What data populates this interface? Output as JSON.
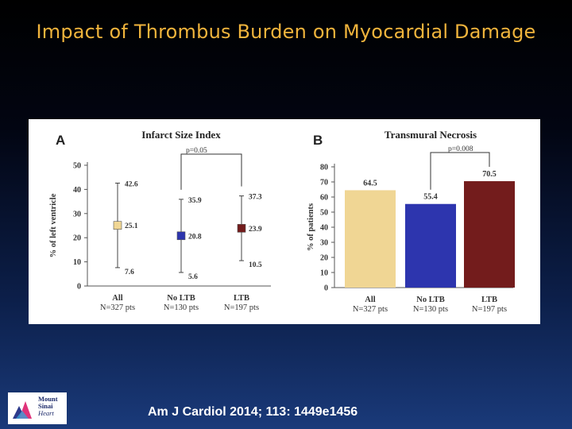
{
  "slide": {
    "title": "Impact of Thrombus Burden on Myocardial Damage",
    "citation": "Am J Cardiol 2014; 113: 1449e1456"
  },
  "logo": {
    "line1": "Mount",
    "line2": "Sinai",
    "line3": "Heart"
  },
  "colors": {
    "all": "#f0d694",
    "no_ltb": "#2d35ae",
    "ltb": "#731c1c"
  },
  "chart_data": [
    {
      "type": "scatter",
      "panel_letter": "A",
      "title": "Infarct Size Index",
      "ylabel": "% of left ventricle",
      "ylim": [
        0,
        50
      ],
      "yticks": [
        0,
        10,
        20,
        30,
        40,
        50
      ],
      "categories": [
        "All",
        "No LTB",
        "LTB"
      ],
      "category_sublabels": [
        "N=327 pts",
        "N=130 pts",
        "N=197 pts"
      ],
      "values": [
        25.1,
        20.8,
        23.9
      ],
      "upper": [
        42.6,
        35.9,
        37.3
      ],
      "lower": [
        7.6,
        5.6,
        10.5
      ],
      "colors": [
        "#f0d694",
        "#2d35ae",
        "#731c1c"
      ],
      "p_value": "p=0.05"
    },
    {
      "type": "bar",
      "panel_letter": "B",
      "title": "Transmural Necrosis",
      "ylabel": "% of patients",
      "ylim": [
        0,
        80
      ],
      "yticks": [
        0,
        10,
        20,
        30,
        40,
        50,
        60,
        70,
        80
      ],
      "categories": [
        "All",
        "No LTB",
        "LTB"
      ],
      "category_sublabels": [
        "N=327 pts",
        "N=130 pts",
        "N=197 pts"
      ],
      "values": [
        64.5,
        55.4,
        70.5
      ],
      "colors": [
        "#f0d694",
        "#2d35ae",
        "#731c1c"
      ],
      "p_value": "p=0.008"
    }
  ]
}
